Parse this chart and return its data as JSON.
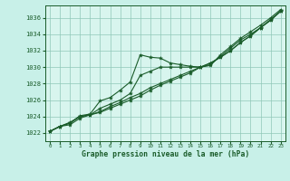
{
  "title": "Graphe pression niveau de la mer (hPa)",
  "bg_color": "#c8f0e8",
  "plot_bg_color": "#d8f5ee",
  "grid_color": "#90c8b8",
  "line_color": "#1a5c2a",
  "text_color": "#1a5c2a",
  "xlim": [
    -0.5,
    23.5
  ],
  "ylim": [
    1021.0,
    1037.5
  ],
  "xticks": [
    0,
    1,
    2,
    3,
    4,
    5,
    6,
    7,
    8,
    9,
    10,
    11,
    12,
    13,
    14,
    15,
    16,
    17,
    18,
    19,
    20,
    21,
    22,
    23
  ],
  "yticks": [
    1022,
    1024,
    1026,
    1028,
    1030,
    1032,
    1034,
    1036
  ],
  "lines": [
    {
      "x": [
        0,
        1,
        2,
        3,
        4,
        5,
        6,
        7,
        8,
        9,
        10,
        11,
        12,
        13,
        14,
        15,
        16,
        17,
        18,
        19,
        20,
        21,
        22,
        23
      ],
      "y": [
        1022.2,
        1022.8,
        1023.2,
        1024.1,
        1024.3,
        1025.9,
        1026.3,
        1027.2,
        1028.2,
        1031.5,
        1031.2,
        1031.1,
        1030.5,
        1030.3,
        1030.1,
        1030.0,
        1030.2,
        1031.5,
        1032.5,
        1033.5,
        1034.3,
        1035.1,
        1036.0,
        1037.0
      ]
    },
    {
      "x": [
        0,
        1,
        2,
        3,
        4,
        5,
        6,
        7,
        8,
        9,
        10,
        11,
        12,
        13,
        14,
        15,
        16,
        17,
        18,
        19,
        20,
        21,
        22,
        23
      ],
      "y": [
        1022.2,
        1022.8,
        1023.2,
        1024.0,
        1024.2,
        1025.0,
        1025.5,
        1026.0,
        1026.8,
        1029.0,
        1029.5,
        1030.0,
        1030.0,
        1030.0,
        1030.0,
        1030.0,
        1030.3,
        1031.3,
        1032.3,
        1033.3,
        1034.0,
        1034.8,
        1035.8,
        1036.8
      ]
    },
    {
      "x": [
        0,
        1,
        2,
        3,
        4,
        5,
        6,
        7,
        8,
        9,
        10,
        11,
        12,
        13,
        14,
        15,
        16,
        17,
        18,
        19,
        20,
        21,
        22,
        23
      ],
      "y": [
        1022.2,
        1022.8,
        1023.3,
        1024.0,
        1024.2,
        1024.6,
        1025.2,
        1025.7,
        1026.3,
        1026.8,
        1027.5,
        1028.0,
        1028.5,
        1029.0,
        1029.5,
        1030.0,
        1030.5,
        1031.2,
        1032.0,
        1033.0,
        1033.8,
        1034.8,
        1035.7,
        1036.8
      ]
    },
    {
      "x": [
        0,
        1,
        2,
        3,
        4,
        5,
        6,
        7,
        8,
        9,
        10,
        11,
        12,
        13,
        14,
        15,
        16,
        17,
        18,
        19,
        20,
        21,
        22,
        23
      ],
      "y": [
        1022.2,
        1022.8,
        1023.0,
        1023.8,
        1024.2,
        1024.5,
        1025.0,
        1025.5,
        1026.0,
        1026.5,
        1027.2,
        1027.8,
        1028.3,
        1028.8,
        1029.3,
        1030.0,
        1030.5,
        1031.2,
        1032.0,
        1033.0,
        1033.8,
        1034.8,
        1035.7,
        1036.8
      ]
    }
  ]
}
